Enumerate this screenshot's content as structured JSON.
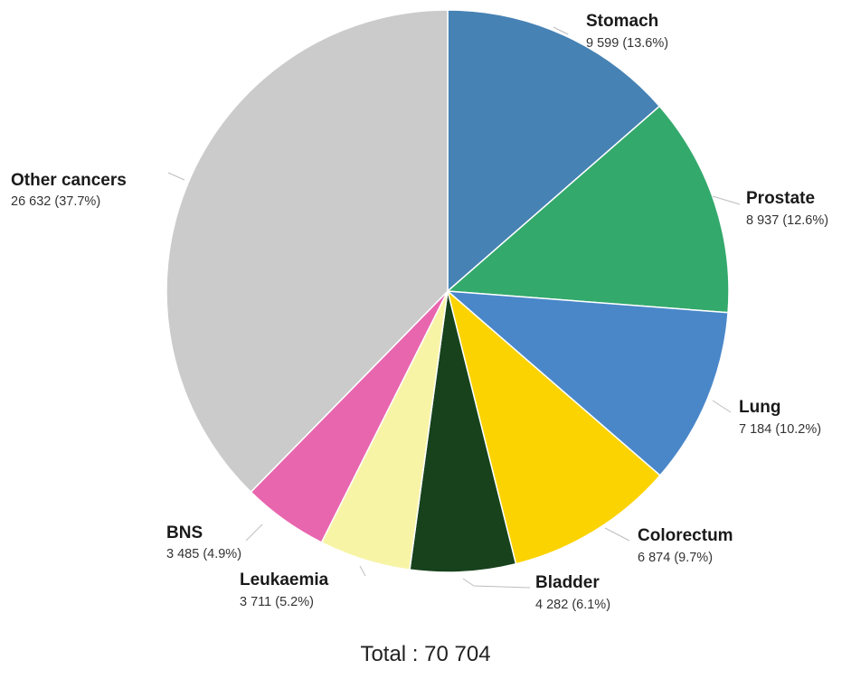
{
  "chart_data": {
    "type": "pie",
    "total_label": "Total : 70 704",
    "slices": [
      {
        "name": "Stomach",
        "value": 9599,
        "value_label": "9 599 (13.6%)",
        "color": "#4682b4"
      },
      {
        "name": "Prostate",
        "value": 8937,
        "value_label": "8 937 (12.6%)",
        "color": "#33a96c"
      },
      {
        "name": "Lung",
        "value": 7184,
        "value_label": "7 184 (10.2%)",
        "color": "#4a87c9"
      },
      {
        "name": "Colorectum",
        "value": 6874,
        "value_label": "6 874 (9.7%)",
        "color": "#fbd300"
      },
      {
        "name": "Bladder",
        "value": 4282,
        "value_label": "4 282 (6.1%)",
        "color": "#17421c"
      },
      {
        "name": "Leukaemia",
        "value": 3711,
        "value_label": "3 711 (5.2%)",
        "color": "#f8f4a6"
      },
      {
        "name": "BNS",
        "value": 3485,
        "value_label": "3 485 (4.9%)",
        "color": "#e866ae"
      },
      {
        "name": "Other cancers",
        "value": 26632,
        "value_label": "26 632 (37.7%)",
        "color": "#cbcbcb"
      }
    ]
  }
}
